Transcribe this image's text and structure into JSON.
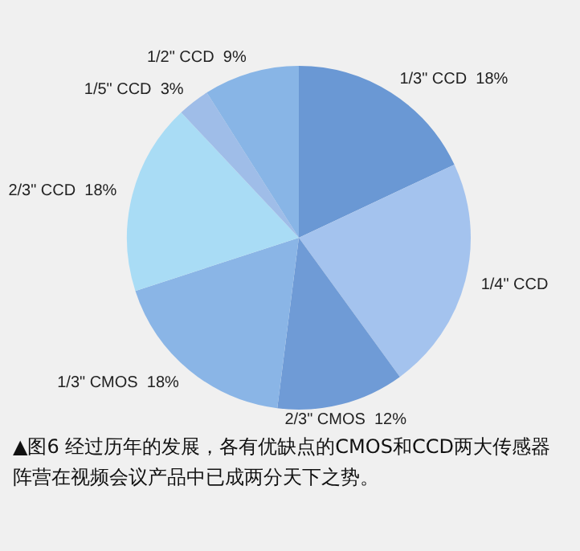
{
  "chart_data": {
    "type": "pie",
    "categories": [
      "1/3\" CCD",
      "1/4\" CCD",
      "2/3\" CMOS",
      "1/3\" CMOS",
      "2/3\" CCD",
      "1/5\" CCD",
      "1/2\" CCD"
    ],
    "values": [
      18,
      22,
      12,
      18,
      18,
      3,
      9
    ],
    "value_labels": [
      "18%",
      null,
      "12%",
      "18%",
      "18%",
      "3%",
      "9%"
    ],
    "colors": [
      "#6a98d4",
      "#a4c3ee",
      "#6f9bd6",
      "#8ab5e6",
      "#a9dcf5",
      "#9fbde8",
      "#88b5e6"
    ],
    "legend": false,
    "annotations": [
      "▲图6 经过历年的发展，各有优缺点的CMOS和CCD两大传感器阵营在视频会议产品中已成两分天下之势。"
    ]
  }
}
